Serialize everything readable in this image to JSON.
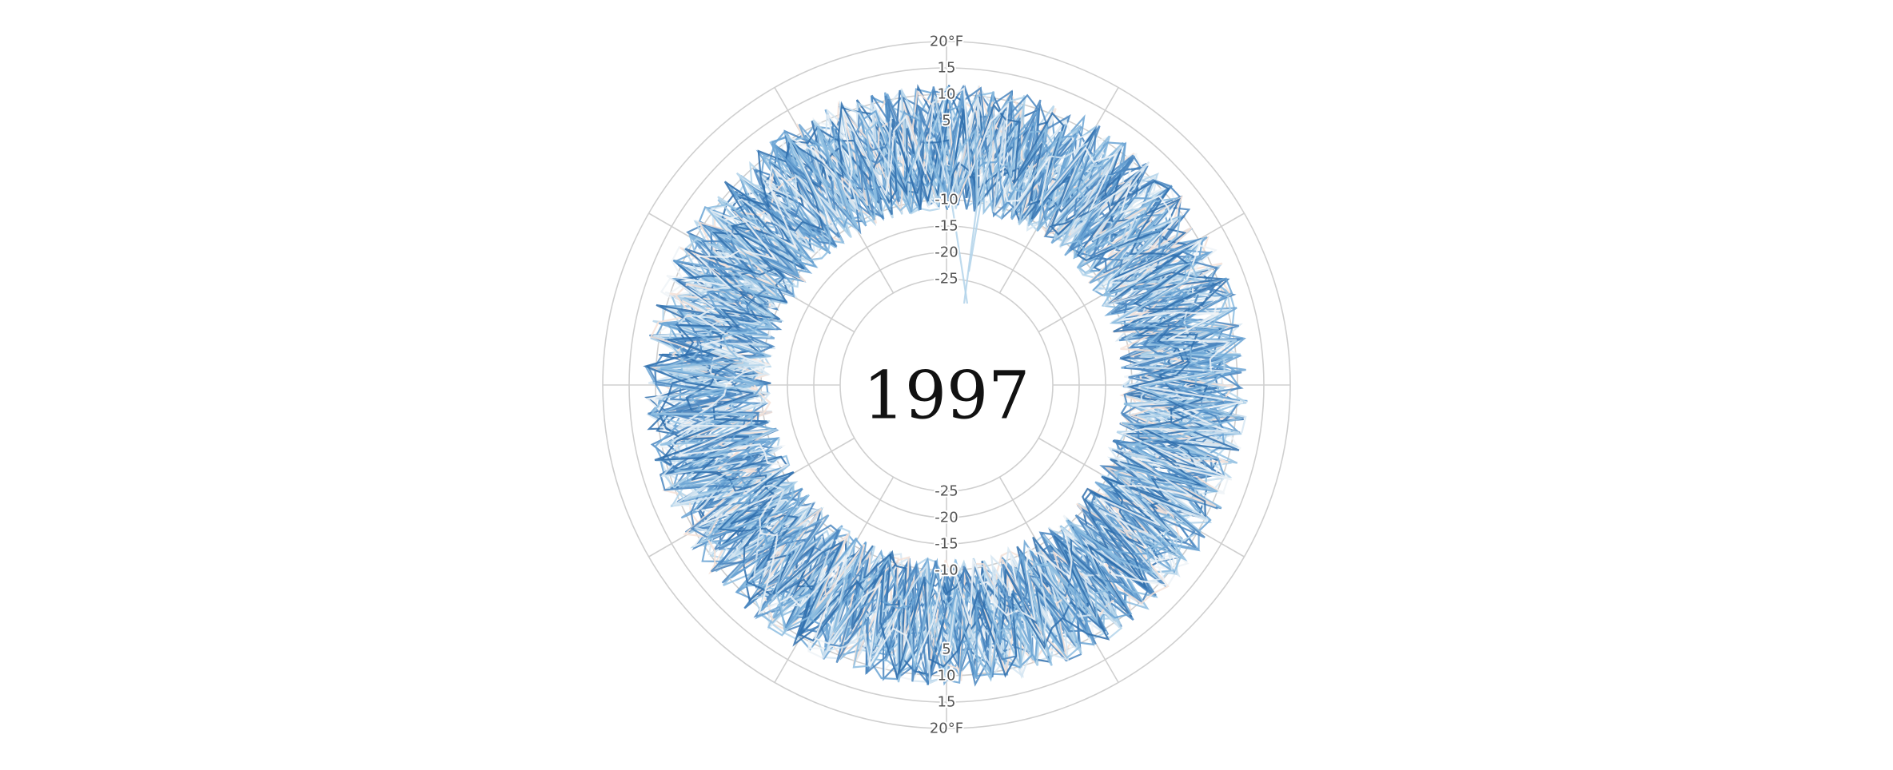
{
  "chart_data": {
    "type": "line",
    "subtype": "radial",
    "center_label": "1997",
    "radial_axis": {
      "unit": "°F",
      "range": [
        -30,
        20
      ],
      "ticks": [
        -25,
        -20,
        -15,
        -10,
        5,
        10,
        15,
        20
      ],
      "tick_labels": [
        "-25",
        "-20",
        "-15",
        "-10",
        "5",
        "10",
        "15",
        "20°F"
      ]
    },
    "grid": true,
    "spokes": 12,
    "series_colors": [
      "#2f6fad",
      "#4a86c0",
      "#6aa3d3",
      "#8dbde0",
      "#b3d4ea",
      "#d6e6f2",
      "#eef3f7",
      "#f4e2d8"
    ],
    "series_count": 60,
    "points_per_series": 120,
    "value_band": [
      -12,
      12
    ]
  }
}
